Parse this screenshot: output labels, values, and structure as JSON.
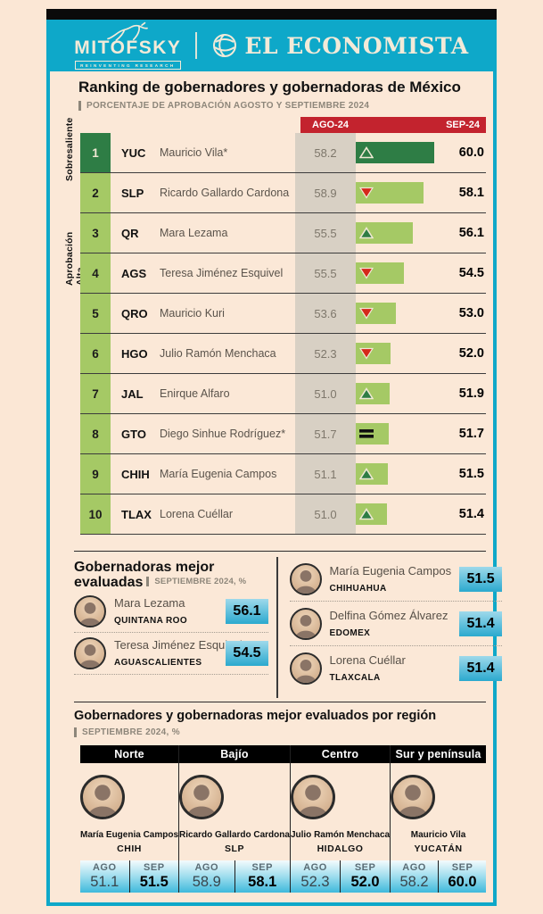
{
  "brand": {
    "mitofsky": "MITOFSKY",
    "mitofsky_tagline": "REINVENTING RESEARCH",
    "economista": "EL ECONOMISTA"
  },
  "title": "Ranking de gobernadores y gobernadoras de México",
  "subtitle": "PORCENTAJE DE APROBACIÓN AGOSTO Y SEPTIEMBRE 2024",
  "ranking": {
    "col_ago": "AGO-24",
    "col_sep": "SEP-24",
    "tier_labels": {
      "top": "Sobresaliente",
      "high": "Aprobación Alta"
    },
    "rows": [
      {
        "rank": "1",
        "state": "YUC",
        "name": "Mauricio Vila*",
        "ago": "58.2",
        "sep": "60.0",
        "trend": "up",
        "tier": "top"
      },
      {
        "rank": "2",
        "state": "SLP",
        "name": "Ricardo Gallardo Cardona",
        "ago": "58.9",
        "sep": "58.1",
        "trend": "down",
        "tier": "high"
      },
      {
        "rank": "3",
        "state": "QR",
        "name": "Mara Lezama",
        "ago": "55.5",
        "sep": "56.1",
        "trend": "up",
        "tier": "high"
      },
      {
        "rank": "4",
        "state": "AGS",
        "name": "Teresa Jiménez Esquivel",
        "ago": "55.5",
        "sep": "54.5",
        "trend": "down",
        "tier": "high"
      },
      {
        "rank": "5",
        "state": "QRO",
        "name": "Mauricio Kuri",
        "ago": "53.6",
        "sep": "53.0",
        "trend": "down",
        "tier": "high"
      },
      {
        "rank": "6",
        "state": "HGO",
        "name": "Julio Ramón Menchaca",
        "ago": "52.3",
        "sep": "52.0",
        "trend": "down",
        "tier": "high"
      },
      {
        "rank": "7",
        "state": "JAL",
        "name": "Enirque Alfaro",
        "ago": "51.0",
        "sep": "51.9",
        "trend": "up",
        "tier": "high"
      },
      {
        "rank": "8",
        "state": "GTO",
        "name": "Diego Sinhue Rodríguez*",
        "ago": "51.7",
        "sep": "51.7",
        "trend": "equal",
        "tier": "high"
      },
      {
        "rank": "9",
        "state": "CHIH",
        "name": "María Eugenia Campos",
        "ago": "51.1",
        "sep": "51.5",
        "trend": "up",
        "tier": "high"
      },
      {
        "rank": "10",
        "state": "TLAX",
        "name": "Lorena Cuéllar",
        "ago": "51.0",
        "sep": "51.4",
        "trend": "up",
        "tier": "high"
      }
    ]
  },
  "best_governors": {
    "title_line1": "Gobernadoras mejor",
    "title_line2": "evaluadas",
    "subtitle": "SEPTIEMBRE 2024, %",
    "left": [
      {
        "name": "Mara Lezama",
        "state": "QUINTANA ROO",
        "value": "56.1"
      },
      {
        "name": "Teresa Jiménez Esquivel",
        "state": "AGUASCALIENTES",
        "value": "54.5"
      }
    ],
    "right": [
      {
        "name": "María Eugenia Campos",
        "state": "CHIHUAHUA",
        "value": "51.5"
      },
      {
        "name": "Delfina Gómez Álvarez",
        "state": "EDOMEX",
        "value": "51.4"
      },
      {
        "name": "Lorena Cuéllar",
        "state": "TLAXCALA",
        "value": "51.4"
      }
    ]
  },
  "regions_section": {
    "title": "Gobernadores y gobernadoras mejor evaluados por región",
    "subtitle": "SEPTIEMBRE 2024, %",
    "ago_label": "AGO",
    "sep_label": "SEP",
    "regions": [
      {
        "region": "Norte",
        "name": "María Eugenia Campos",
        "state": "CHIH",
        "ago": "51.1",
        "sep": "51.5"
      },
      {
        "region": "Bajío",
        "name": "Ricardo Gallardo Cardona",
        "state": "SLP",
        "ago": "58.9",
        "sep": "58.1"
      },
      {
        "region": "Centro",
        "name": "Julio Ramón Menchaca",
        "state": "HIDALGO",
        "ago": "52.3",
        "sep": "52.0"
      },
      {
        "region": "Sur y península",
        "name": "Mauricio Vila",
        "state": "YUCATÁN",
        "ago": "58.2",
        "sep": "60.0"
      }
    ]
  },
  "chart_data": {
    "type": "bar",
    "title": "Ranking de gobernadores y gobernadoras de México",
    "subtitle": "Porcentaje de aprobación agosto y septiembre 2024",
    "categories": [
      "YUC",
      "SLP",
      "QR",
      "AGS",
      "QRO",
      "HGO",
      "JAL",
      "GTO",
      "CHIH",
      "TLAX"
    ],
    "governors": [
      "Mauricio Vila*",
      "Ricardo Gallardo Cardona",
      "Mara Lezama",
      "Teresa Jiménez Esquivel",
      "Mauricio Kuri",
      "Julio Ramón Menchaca",
      "Enirque Alfaro",
      "Diego Sinhue Rodríguez*",
      "María Eugenia Campos",
      "Lorena Cuéllar"
    ],
    "series": [
      {
        "name": "AGO-24",
        "values": [
          58.2,
          58.9,
          55.5,
          55.5,
          53.6,
          52.3,
          51.0,
          51.7,
          51.1,
          51.0
        ]
      },
      {
        "name": "SEP-24",
        "values": [
          60.0,
          58.1,
          56.1,
          54.5,
          53.0,
          52.0,
          51.9,
          51.7,
          51.5,
          51.4
        ]
      }
    ],
    "trend": [
      "up",
      "down",
      "up",
      "down",
      "down",
      "down",
      "up",
      "equal",
      "up",
      "up"
    ],
    "tiers": [
      "Sobresaliente",
      "Aprobación Alta",
      "Aprobación Alta",
      "Aprobación Alta",
      "Aprobación Alta",
      "Aprobación Alta",
      "Aprobación Alta",
      "Aprobación Alta",
      "Aprobación Alta",
      "Aprobación Alta"
    ],
    "legend_position": "top",
    "grid": false
  },
  "colors": {
    "teal": "#0EA8C9",
    "cream": "#FBE8D7",
    "header_red": "#C3232E",
    "ago_column_tan": "#D8D0C4",
    "bar_green_dark": "#2E7D45",
    "bar_green_light": "#A5C965",
    "triangle_down_red": "#D5291B",
    "badge_gradient_top": "#9ED9EB",
    "badge_gradient_bottom": "#2BA9CE"
  }
}
